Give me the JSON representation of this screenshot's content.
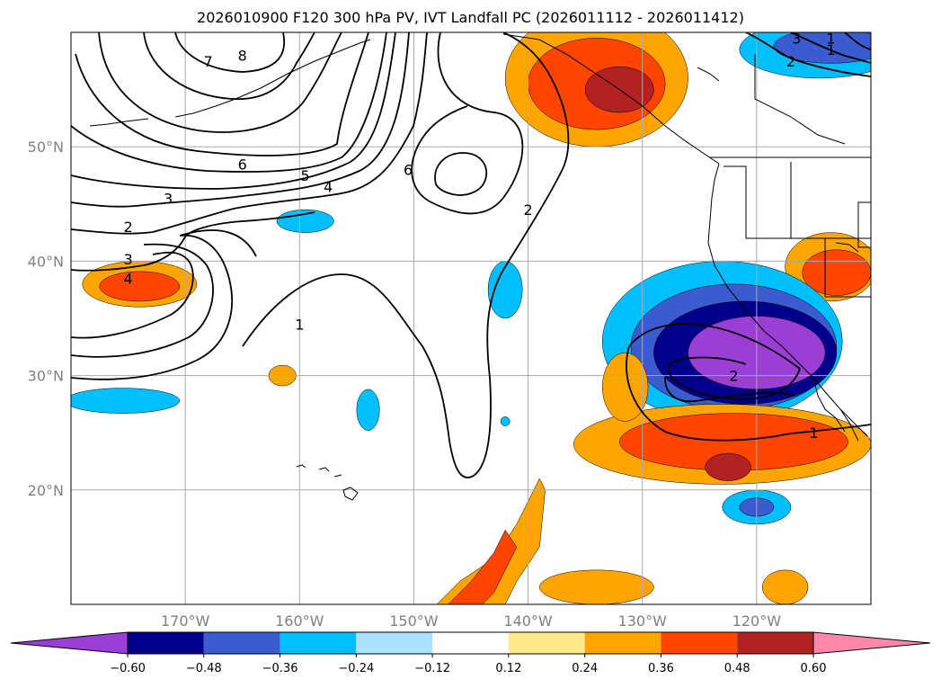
{
  "title": "2026010900 F120 300 hPa PV, IVT Landfall PC (2026011112 - 2026011412)",
  "map": {
    "lon_range": [
      -180,
      -110
    ],
    "lat_range": [
      10,
      60
    ],
    "lat_labels": [
      {
        "lat": 50,
        "text": "50°N"
      },
      {
        "lat": 40,
        "text": "40°N"
      },
      {
        "lat": 30,
        "text": "30°N"
      },
      {
        "lat": 20,
        "text": "20°N"
      }
    ],
    "lon_labels": [
      {
        "lon": -170,
        "text": "170°W"
      },
      {
        "lon": -160,
        "text": "160°W"
      },
      {
        "lon": -150,
        "text": "150°W"
      },
      {
        "lon": -140,
        "text": "140°W"
      },
      {
        "lon": -130,
        "text": "130°W"
      },
      {
        "lon": -120,
        "text": "120°W"
      }
    ],
    "contour_labels": [
      {
        "lon": -165,
        "lat": 58,
        "text": "8"
      },
      {
        "lon": -168,
        "lat": 57.5,
        "text": "7"
      },
      {
        "lon": -165,
        "lat": 48.5,
        "text": "6"
      },
      {
        "lon": -159.5,
        "lat": 47.5,
        "text": "5"
      },
      {
        "lon": -157.5,
        "lat": 46.5,
        "text": "4"
      },
      {
        "lon": -171.5,
        "lat": 45.5,
        "text": "3"
      },
      {
        "lon": -175,
        "lat": 43,
        "text": "2"
      },
      {
        "lon": -175,
        "lat": 40.2,
        "text": "3"
      },
      {
        "lon": -175,
        "lat": 38.5,
        "text": "4"
      },
      {
        "lon": -150.5,
        "lat": 48,
        "text": "6"
      },
      {
        "lon": -140,
        "lat": 44.5,
        "text": "2"
      },
      {
        "lon": -160,
        "lat": 34.5,
        "text": "1"
      },
      {
        "lon": -122,
        "lat": 30,
        "text": "2"
      },
      {
        "lon": -115,
        "lat": 25,
        "text": "1"
      },
      {
        "lon": -116.5,
        "lat": 59.5,
        "text": "3"
      },
      {
        "lon": -113.5,
        "lat": 59.5,
        "text": "1"
      },
      {
        "lon": -117,
        "lat": 57.5,
        "text": "2"
      },
      {
        "lon": -113.5,
        "lat": 58.5,
        "text": "1"
      }
    ],
    "fill_regions": [
      {
        "class": 0.3,
        "lon": -134,
        "lat": 56,
        "rx": 8,
        "ry": 6
      },
      {
        "class": 0.42,
        "lon": -134,
        "lat": 55.5,
        "rx": 6,
        "ry": 4
      },
      {
        "class": 0.54,
        "lon": -132,
        "lat": 55,
        "rx": 3,
        "ry": 2
      },
      {
        "class": -0.3,
        "lon": -114.5,
        "lat": 58.5,
        "rx": 7,
        "ry": 2.5
      },
      {
        "class": -0.42,
        "lon": -113.5,
        "lat": 58.8,
        "rx": 5,
        "ry": 1.5
      },
      {
        "class": 0.3,
        "lon": -113.5,
        "lat": 39.5,
        "rx": 4,
        "ry": 3
      },
      {
        "class": 0.42,
        "lon": -113,
        "lat": 39,
        "rx": 3,
        "ry": 2
      },
      {
        "class": -0.3,
        "lon": -123,
        "lat": 33,
        "rx": 10.5,
        "ry": 7
      },
      {
        "class": -0.42,
        "lon": -122,
        "lat": 32.5,
        "rx": 9,
        "ry": 5.5
      },
      {
        "class": -0.54,
        "lon": -121,
        "lat": 32,
        "rx": 8,
        "ry": 4.5
      },
      {
        "class": -0.66,
        "lon": -120,
        "lat": 32,
        "rx": 6,
        "ry": 3.2
      },
      {
        "class": 0.3,
        "lon": -123,
        "lat": 24,
        "rx": 13,
        "ry": 3.5
      },
      {
        "class": 0.42,
        "lon": -122,
        "lat": 24.2,
        "rx": 10,
        "ry": 2.5
      },
      {
        "class": 0.54,
        "lon": -122.5,
        "lat": 22,
        "rx": 2,
        "ry": 1.2
      },
      {
        "class": 0.3,
        "lon": -131.5,
        "lat": 29,
        "rx": 2,
        "ry": 3
      },
      {
        "class": 0.3,
        "lon": -174,
        "lat": 38,
        "rx": 5,
        "ry": 2
      },
      {
        "class": 0.42,
        "lon": -174,
        "lat": 37.8,
        "rx": 3.5,
        "ry": 1.3
      },
      {
        "class": -0.3,
        "lon": -175.5,
        "lat": 27.8,
        "rx": 5,
        "ry": 1.1
      },
      {
        "class": -0.3,
        "lon": -159.5,
        "lat": 43.5,
        "rx": 2.5,
        "ry": 1
      },
      {
        "class": -0.3,
        "lon": -142,
        "lat": 37.5,
        "rx": 1.5,
        "ry": 2.5
      },
      {
        "class": -0.3,
        "lon": -154,
        "lat": 27,
        "rx": 1,
        "ry": 1.8
      },
      {
        "class": 0.3,
        "lon": -161.5,
        "lat": 30,
        "rx": 1.2,
        "ry": 0.9
      },
      {
        "class": -0.3,
        "lon": -120,
        "lat": 18.5,
        "rx": 3,
        "ry": 1.5
      },
      {
        "class": -0.42,
        "lon": -120,
        "lat": 18.5,
        "rx": 1.5,
        "ry": 0.8
      },
      {
        "class": 0.3,
        "lon": -134,
        "lat": 11.5,
        "rx": 5,
        "ry": 1.5
      },
      {
        "class": 0.3,
        "lon": -117.5,
        "lat": 11.5,
        "rx": 2,
        "ry": 1.5
      },
      {
        "class": -0.3,
        "lon": -142,
        "lat": 26,
        "rx": 0.4,
        "ry": 0.4
      }
    ],
    "fill_polys": [
      {
        "class": 0.3,
        "pts": [
          [
            -148,
            10
          ],
          [
            -146,
            12
          ],
          [
            -143,
            14
          ],
          [
            -141,
            17
          ],
          [
            -139,
            21
          ],
          [
            -138.5,
            20
          ],
          [
            -139,
            15
          ],
          [
            -141,
            12
          ],
          [
            -142,
            10
          ]
        ]
      },
      {
        "class": 0.42,
        "pts": [
          [
            -147,
            10
          ],
          [
            -145,
            12
          ],
          [
            -143,
            14.5
          ],
          [
            -142,
            16.5
          ],
          [
            -141,
            15
          ],
          [
            -143,
            11
          ],
          [
            -144,
            10
          ]
        ]
      }
    ]
  },
  "colorbar": {
    "colors": [
      "#9a3ed6",
      "#00008b",
      "#3a5ccf",
      "#00bfff",
      "#ade2fc",
      "#ffffff",
      "#ffeb8c",
      "#ffa500",
      "#ff4500",
      "#b22222",
      "#ff88aa"
    ],
    "ticks": [
      "−0.60",
      "−0.48",
      "−0.36",
      "−0.24",
      "−0.12",
      "0.12",
      "0.24",
      "0.36",
      "0.48",
      "0.60"
    ]
  }
}
